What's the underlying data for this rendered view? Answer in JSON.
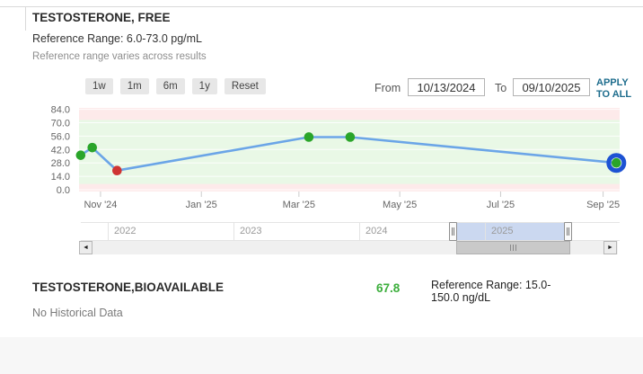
{
  "panel": {
    "free": {
      "title": "TESTOSTERONE, FREE",
      "reference_range": "Reference Range: 6.0-73.0 pg/mL",
      "note": "Reference range varies across results"
    },
    "controls": {
      "range_buttons": [
        "1w",
        "1m",
        "6m",
        "1y",
        "Reset"
      ],
      "from_label": "From",
      "from_value": "10/13/2024",
      "to_label": "To",
      "to_value": "09/10/2025",
      "apply_label": "APPLY TO ALL"
    },
    "bioavailable": {
      "title": "TESTOSTERONE,BIOAVAILABLE",
      "value": "67.8",
      "reference_range": "Reference Range: 15.0-150.0 ng/dL",
      "no_data": "No Historical Data"
    }
  },
  "chart_data": {
    "type": "line",
    "title": "TESTOSTERONE, FREE trend",
    "xlabel": "",
    "ylabel": "",
    "units": "pg/mL",
    "ylim": [
      0,
      89
    ],
    "grid": true,
    "legend": false,
    "y_ticks": [
      0,
      14,
      28,
      42,
      56,
      70,
      84
    ],
    "y_tick_labels": [
      "0.0",
      "14.0",
      "28.0",
      "42.0",
      "56.0",
      "70.0",
      "84.0"
    ],
    "x_domain": [
      "2024-10-19",
      "2025-09-11"
    ],
    "x_ticks": [
      {
        "label": "Nov '24",
        "date": "2024-11-01"
      },
      {
        "label": "Jan '25",
        "date": "2025-01-01"
      },
      {
        "label": "Mar '25",
        "date": "2025-03-01"
      },
      {
        "label": "May '25",
        "date": "2025-05-01"
      },
      {
        "label": "Jul '25",
        "date": "2025-07-01"
      },
      {
        "label": "Sep '25",
        "date": "2025-09-01"
      }
    ],
    "reference_band": {
      "low": 6.0,
      "high": 73.0,
      "in_color": "#e9f8e6",
      "out_color": "#fdeaea"
    },
    "points": [
      {
        "date": "2024-10-20",
        "value": 36,
        "flag": "normal",
        "selected": false
      },
      {
        "date": "2024-10-27",
        "value": 44,
        "flag": "normal",
        "selected": false
      },
      {
        "date": "2024-11-11",
        "value": 20,
        "flag": "abnormal",
        "selected": false
      },
      {
        "date": "2025-03-07",
        "value": 55,
        "flag": "normal",
        "selected": false
      },
      {
        "date": "2025-04-01",
        "value": 55,
        "flag": "normal",
        "selected": false
      },
      {
        "date": "2025-09-09",
        "value": 28,
        "flag": "normal",
        "selected": true
      }
    ],
    "colors": {
      "line": "#6ba5e7",
      "normal": "#2aa52a",
      "abnormal": "#cf3434",
      "selected_ring": "#1d52d3"
    }
  },
  "navigator": {
    "years": [
      "2022",
      "2023",
      "2024",
      "2025"
    ],
    "selection_color": "#cbd8f0",
    "scrollbar": {
      "left_arrow_icon": "◄",
      "right_arrow_icon": "►"
    }
  }
}
